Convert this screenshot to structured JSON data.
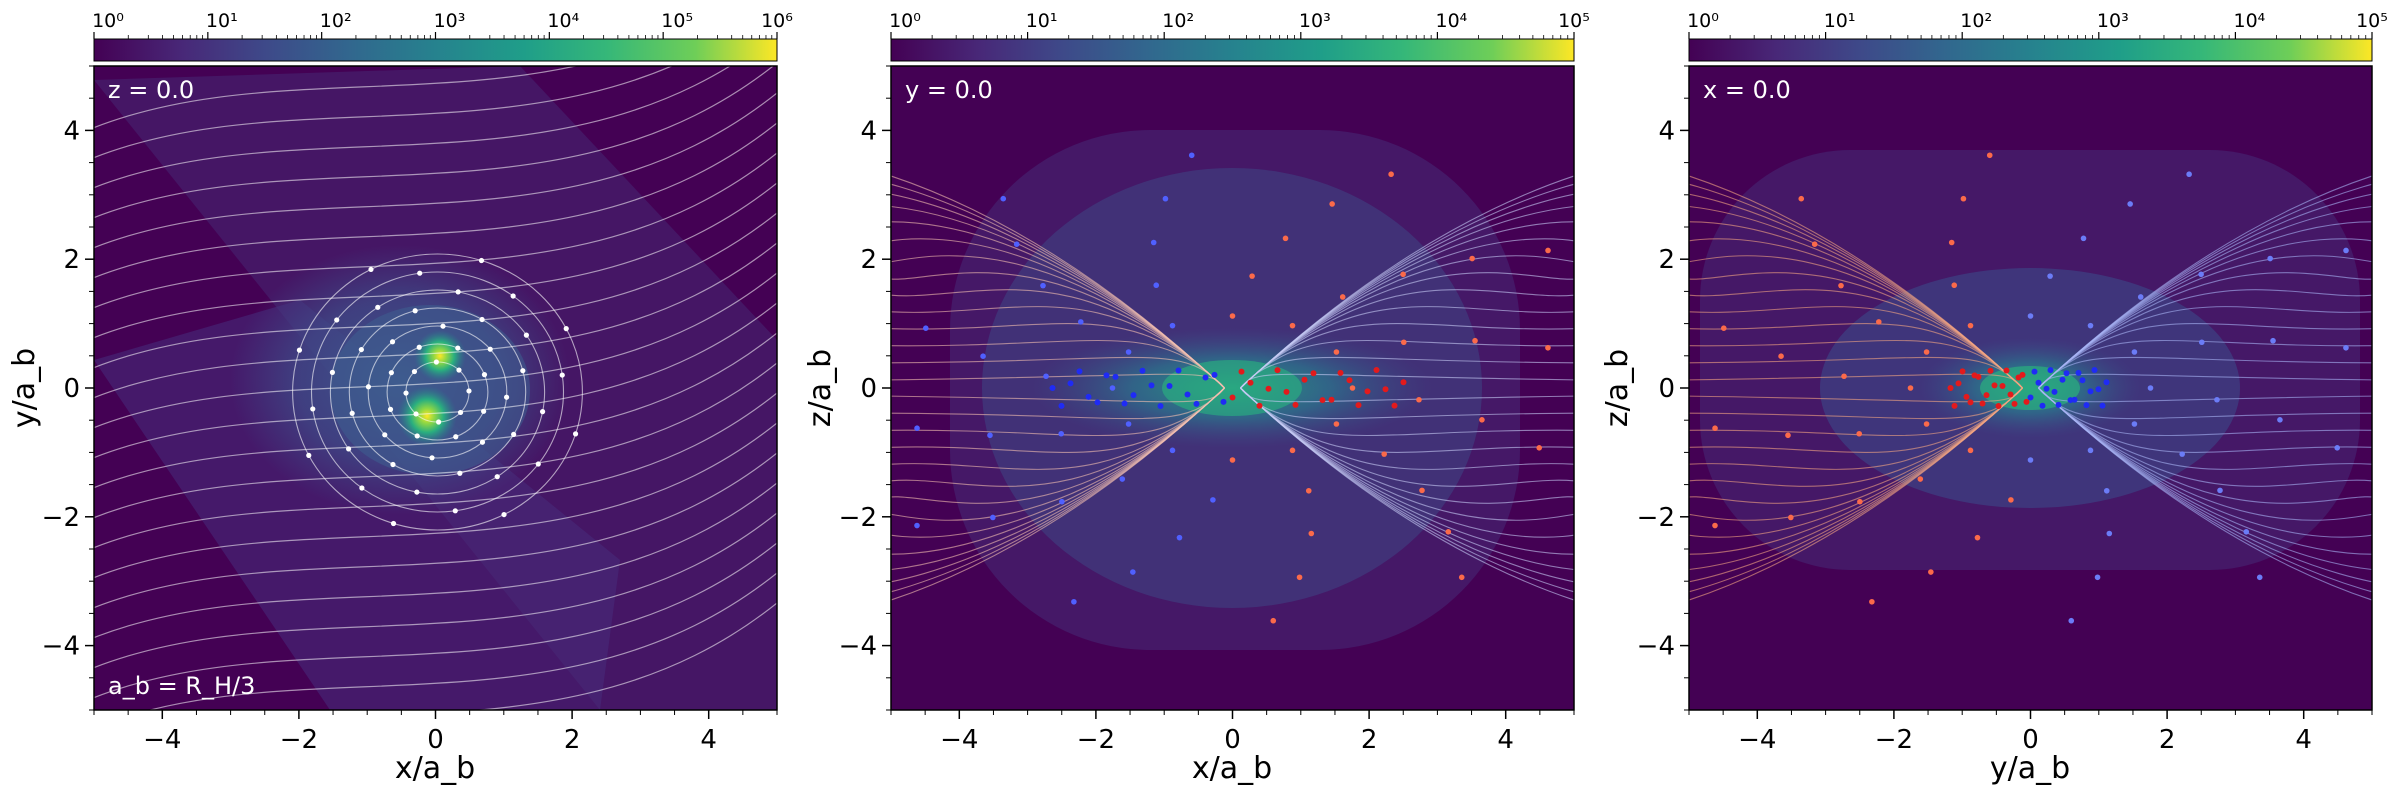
{
  "chart_data": [
    {
      "type": "heatmap",
      "panel": "left",
      "slice_label": "z = 0.0",
      "annotation": "a_b = R_H/3",
      "xlabel": "x/a_b",
      "ylabel": "y/a_b",
      "xlim": [
        -5,
        5
      ],
      "ylim": [
        -5,
        5
      ],
      "xticks": [
        -4,
        -2,
        0,
        2,
        4
      ],
      "yticks": [
        -4,
        -2,
        0,
        2,
        4
      ],
      "xtick_labels": [
        "−4",
        "−2",
        "0",
        "2",
        "4"
      ],
      "ytick_labels": [
        "−4",
        "−2",
        "0",
        "2",
        "4"
      ],
      "colorbar": {
        "scale": "log",
        "exponents": [
          0,
          1,
          2,
          3,
          4,
          5,
          6
        ],
        "labels": [
          "10⁰",
          "10¹",
          "10²",
          "10³",
          "10⁴",
          "10⁵",
          "10⁶"
        ]
      },
      "overlay": "streamlines",
      "stream_color": "white"
    },
    {
      "type": "heatmap",
      "panel": "middle",
      "slice_label": "y = 0.0",
      "xlabel": "x/a_b",
      "ylabel": "z/a_b",
      "xlim": [
        -5,
        5
      ],
      "ylim": [
        -5,
        5
      ],
      "xticks": [
        -4,
        -2,
        0,
        2,
        4
      ],
      "yticks": [
        -4,
        -2,
        0,
        2,
        4
      ],
      "xtick_labels": [
        "−4",
        "−2",
        "0",
        "2",
        "4"
      ],
      "ytick_labels": [
        "−4",
        "−2",
        "0",
        "2",
        "4"
      ],
      "colorbar": {
        "scale": "log",
        "exponents": [
          0,
          1,
          2,
          3,
          4,
          5
        ],
        "labels": [
          "10⁰",
          "10¹",
          "10²",
          "10³",
          "10⁴",
          "10⁵"
        ]
      },
      "overlay": "streamlines",
      "stream_color": "red-blue"
    },
    {
      "type": "heatmap",
      "panel": "right",
      "slice_label": "x = 0.0",
      "xlabel": "y/a_b",
      "ylabel": "z/a_b",
      "xlim": [
        -5,
        5
      ],
      "ylim": [
        -5,
        5
      ],
      "xticks": [
        -4,
        -2,
        0,
        2,
        4
      ],
      "yticks": [
        -4,
        -2,
        0,
        2,
        4
      ],
      "xtick_labels": [
        "−4",
        "−2",
        "0",
        "2",
        "4"
      ],
      "ytick_labels": [
        "−4",
        "−2",
        "0",
        "2",
        "4"
      ],
      "colorbar": {
        "scale": "log",
        "exponents": [
          0,
          1,
          2,
          3,
          4,
          5
        ],
        "labels": [
          "10⁰",
          "10¹",
          "10²",
          "10³",
          "10⁴",
          "10⁵"
        ]
      },
      "overlay": "streamlines",
      "stream_color": "red-blue"
    }
  ],
  "colors": {
    "background": "#440154",
    "halo": "#3b4f8c",
    "core": "#23908c",
    "peak": "#fde725",
    "stream_white": "#ffffff",
    "stream_red": "#f03b20",
    "stream_blue": "#2c3ff0"
  }
}
